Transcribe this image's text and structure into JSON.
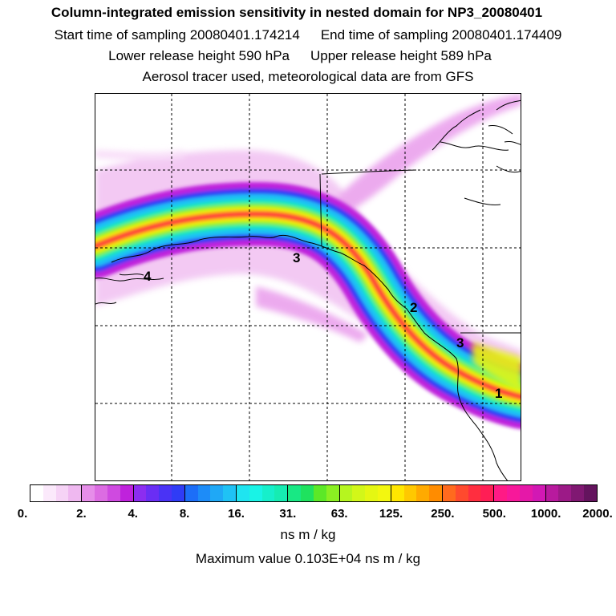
{
  "header": {
    "title": "Column-integrated emission sensitivity in nested domain for NP3_20080401",
    "start_sampling": "Start time of sampling 20080401.174214",
    "end_sampling": "End time of sampling 20080401.174409",
    "lower_release": "Lower release height  590 hPa",
    "upper_release": "Upper release height  589 hPa",
    "tracer_info": "Aerosol tracer used, meteorological data are from GFS"
  },
  "map": {
    "markers": [
      {
        "label": "1"
      },
      {
        "label": "2"
      },
      {
        "label": "3"
      },
      {
        "label": "3"
      },
      {
        "label": "4"
      }
    ]
  },
  "colorbar": {
    "tick_labels": [
      "0.",
      "2.",
      "4.",
      "8.",
      "16.",
      "31.",
      "63.",
      "125.",
      "250.",
      "500.",
      "1000.",
      "2000."
    ],
    "colors": [
      "#ffffff",
      "#fbe9fb",
      "#f6d3f6",
      "#efb8f0",
      "#e68ee9",
      "#dc6ce2",
      "#cf4ae0",
      "#bf22dc",
      "#8c2df0",
      "#6a2ef4",
      "#4a33f5",
      "#2f3cf6",
      "#1c6ef8",
      "#1d8cf8",
      "#1fa8f6",
      "#1fc2f5",
      "#1fe4f0",
      "#19f3e6",
      "#16efcb",
      "#16ecb2",
      "#18e884",
      "#1fe25e",
      "#5ce827",
      "#8aef22",
      "#b6f51f",
      "#d2f719",
      "#e5f712",
      "#f3f70f",
      "#ffe600",
      "#ffc800",
      "#ffaa00",
      "#ff8c00",
      "#ff6a1e",
      "#ff4a2e",
      "#ff2e3f",
      "#ff1e55",
      "#ff1a85",
      "#f7189a",
      "#e518a8",
      "#d218b4",
      "#b81a9e",
      "#9c1a87",
      "#801872",
      "#64145e"
    ],
    "units": "ns m / kg"
  },
  "footer": {
    "max_value": "Maximum value  0.103E+04 ns m / kg"
  }
}
